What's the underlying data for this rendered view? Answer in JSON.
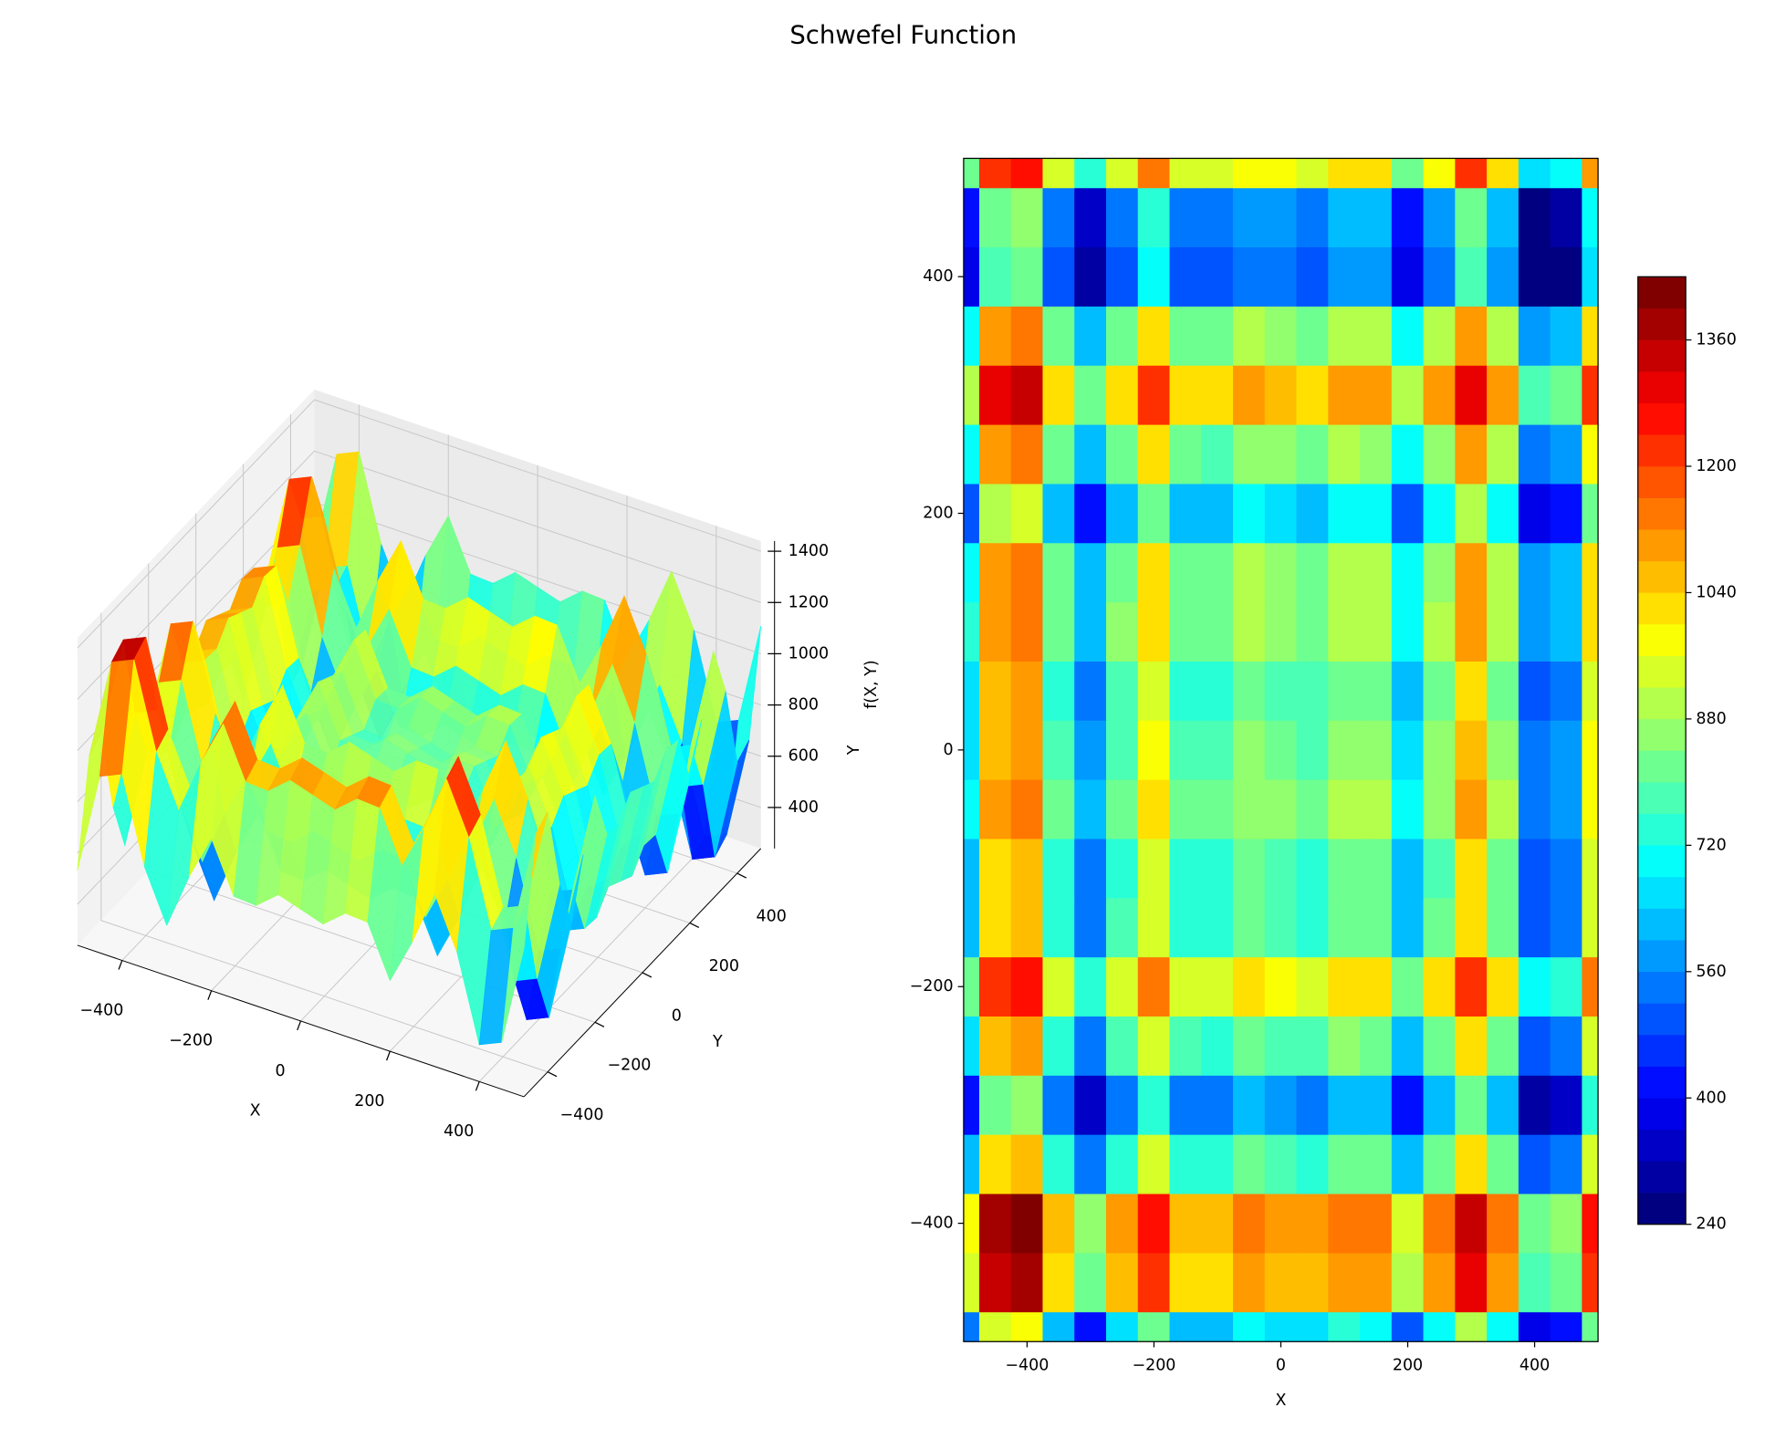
{
  "title": "Schwefel Function",
  "chart_data": [
    {
      "type": "surface",
      "x": [
        -500,
        -450,
        -400,
        -350,
        -300,
        -250,
        -200,
        -150,
        -100,
        -50,
        0,
        50,
        100,
        150,
        200,
        250,
        300,
        350,
        400,
        450,
        500
      ],
      "y": [
        -500,
        -450,
        -400,
        -350,
        -300,
        -250,
        -200,
        -150,
        -100,
        -50,
        0,
        50,
        100,
        150,
        200,
        250,
        300,
        350,
        400,
        450,
        500
      ],
      "z": [
        [
          532,
          929,
          968,
          636,
          436,
          655,
          836,
          638,
          632,
          704,
          676,
          648,
          720,
          714,
          516,
          697,
          916,
          716,
          384,
          423,
          820
        ],
        [
          929,
          1326,
          1365,
          1033,
          833,
          1052,
          1233,
          1035,
          1029,
          1101,
          1073,
          1045,
          1117,
          1111,
          913,
          1094,
          1313,
          1113,
          781,
          820,
          1217
        ],
        [
          968,
          1365,
          1404,
          1072,
          872,
          1091,
          1272,
          1074,
          1068,
          1140,
          1112,
          1084,
          1156,
          1150,
          952,
          1133,
          1352,
          1152,
          820,
          859,
          1256
        ],
        [
          636,
          1033,
          1072,
          740,
          540,
          759,
          940,
          742,
          736,
          808,
          780,
          752,
          824,
          818,
          620,
          801,
          1020,
          820,
          488,
          527,
          924
        ],
        [
          436,
          833,
          872,
          540,
          340,
          559,
          740,
          542,
          536,
          608,
          580,
          552,
          624,
          618,
          420,
          601,
          820,
          620,
          288,
          327,
          724
        ],
        [
          655,
          1052,
          1091,
          759,
          559,
          778,
          959,
          761,
          755,
          827,
          799,
          771,
          843,
          837,
          639,
          820,
          1039,
          839,
          507,
          546,
          943
        ],
        [
          836,
          1233,
          1272,
          940,
          740,
          959,
          1140,
          942,
          936,
          1008,
          980,
          952,
          1024,
          1018,
          820,
          1001,
          1220,
          1020,
          688,
          727,
          1124
        ],
        [
          638,
          1035,
          1074,
          742,
          542,
          761,
          942,
          744,
          738,
          810,
          782,
          754,
          826,
          820,
          622,
          803,
          1022,
          822,
          490,
          529,
          926
        ],
        [
          632,
          1029,
          1068,
          736,
          536,
          755,
          936,
          738,
          732,
          804,
          776,
          748,
          820,
          814,
          616,
          797,
          1016,
          816,
          484,
          523,
          920
        ],
        [
          704,
          1101,
          1140,
          808,
          608,
          827,
          1008,
          810,
          804,
          876,
          848,
          820,
          892,
          886,
          688,
          869,
          1088,
          888,
          556,
          595,
          992
        ],
        [
          676,
          1073,
          1112,
          780,
          580,
          799,
          980,
          782,
          776,
          848,
          820,
          792,
          864,
          858,
          660,
          841,
          1060,
          860,
          528,
          567,
          964
        ],
        [
          648,
          1045,
          1084,
          752,
          552,
          771,
          952,
          754,
          748,
          820,
          792,
          764,
          836,
          830,
          632,
          813,
          1032,
          832,
          500,
          539,
          936
        ],
        [
          720,
          1117,
          1156,
          824,
          624,
          843,
          1024,
          826,
          820,
          892,
          864,
          836,
          908,
          902,
          704,
          885,
          1104,
          904,
          572,
          611,
          1008
        ],
        [
          714,
          1111,
          1150,
          818,
          618,
          837,
          1018,
          820,
          814,
          886,
          858,
          830,
          902,
          896,
          698,
          879,
          1098,
          898,
          566,
          605,
          1002
        ],
        [
          516,
          913,
          952,
          620,
          420,
          639,
          820,
          622,
          616,
          688,
          660,
          632,
          704,
          698,
          500,
          681,
          900,
          700,
          368,
          407,
          804
        ],
        [
          697,
          1094,
          1133,
          801,
          601,
          820,
          1001,
          803,
          797,
          869,
          841,
          813,
          885,
          879,
          681,
          862,
          1081,
          881,
          549,
          588,
          985
        ],
        [
          916,
          1313,
          1352,
          1020,
          820,
          1039,
          1220,
          1022,
          1016,
          1088,
          1060,
          1032,
          1104,
          1098,
          900,
          1081,
          1300,
          1100,
          768,
          807,
          1204
        ],
        [
          716,
          1113,
          1152,
          820,
          620,
          839,
          1020,
          822,
          816,
          888,
          860,
          832,
          904,
          898,
          700,
          881,
          1100,
          900,
          568,
          607,
          1004
        ],
        [
          384,
          781,
          820,
          488,
          288,
          507,
          688,
          490,
          484,
          556,
          528,
          500,
          572,
          566,
          368,
          549,
          768,
          568,
          236,
          275,
          672
        ],
        [
          423,
          820,
          859,
          527,
          327,
          546,
          727,
          529,
          523,
          595,
          567,
          539,
          611,
          605,
          407,
          588,
          807,
          607,
          275,
          314,
          711
        ],
        [
          820,
          1217,
          1256,
          924,
          724,
          943,
          1124,
          926,
          920,
          992,
          964,
          936,
          1008,
          1002,
          804,
          985,
          1204,
          1004,
          672,
          711,
          1108
        ]
      ],
      "colormap": "jet",
      "xlim": [
        -500,
        500
      ],
      "ylim": [
        -500,
        500
      ],
      "zlim": [
        240,
        1440
      ],
      "xticks": [
        {
          "value": -400,
          "label": "−400"
        },
        {
          "value": -200,
          "label": "−200"
        },
        0,
        200,
        400
      ],
      "yticks": [
        {
          "value": -400,
          "label": "−400"
        },
        {
          "value": -200,
          "label": "−200"
        },
        0,
        200,
        400
      ],
      "zticks": [
        400,
        600,
        800,
        1000,
        1200,
        1400
      ],
      "xlabel": "X",
      "ylabel": "Y",
      "zlabel": "f(X, Y)"
    },
    {
      "type": "contour",
      "x": [
        -500,
        -450,
        -400,
        -350,
        -300,
        -250,
        -200,
        -150,
        -100,
        -50,
        0,
        50,
        100,
        150,
        200,
        250,
        300,
        350,
        400,
        450,
        500
      ],
      "y": [
        -500,
        -450,
        -400,
        -350,
        -300,
        -250,
        -200,
        -150,
        -100,
        -50,
        0,
        50,
        100,
        150,
        200,
        250,
        300,
        350,
        400,
        450,
        500
      ],
      "z": [
        [
          532,
          929,
          968,
          636,
          436,
          655,
          836,
          638,
          632,
          704,
          676,
          648,
          720,
          714,
          516,
          697,
          916,
          716,
          384,
          423,
          820
        ],
        [
          929,
          1326,
          1365,
          1033,
          833,
          1052,
          1233,
          1035,
          1029,
          1101,
          1073,
          1045,
          1117,
          1111,
          913,
          1094,
          1313,
          1113,
          781,
          820,
          1217
        ],
        [
          968,
          1365,
          1404,
          1072,
          872,
          1091,
          1272,
          1074,
          1068,
          1140,
          1112,
          1084,
          1156,
          1150,
          952,
          1133,
          1352,
          1152,
          820,
          859,
          1256
        ],
        [
          636,
          1033,
          1072,
          740,
          540,
          759,
          940,
          742,
          736,
          808,
          780,
          752,
          824,
          818,
          620,
          801,
          1020,
          820,
          488,
          527,
          924
        ],
        [
          436,
          833,
          872,
          540,
          340,
          559,
          740,
          542,
          536,
          608,
          580,
          552,
          624,
          618,
          420,
          601,
          820,
          620,
          288,
          327,
          724
        ],
        [
          655,
          1052,
          1091,
          759,
          559,
          778,
          959,
          761,
          755,
          827,
          799,
          771,
          843,
          837,
          639,
          820,
          1039,
          839,
          507,
          546,
          943
        ],
        [
          836,
          1233,
          1272,
          940,
          740,
          959,
          1140,
          942,
          936,
          1008,
          980,
          952,
          1024,
          1018,
          820,
          1001,
          1220,
          1020,
          688,
          727,
          1124
        ],
        [
          638,
          1035,
          1074,
          742,
          542,
          761,
          942,
          744,
          738,
          810,
          782,
          754,
          826,
          820,
          622,
          803,
          1022,
          822,
          490,
          529,
          926
        ],
        [
          632,
          1029,
          1068,
          736,
          536,
          755,
          936,
          738,
          732,
          804,
          776,
          748,
          820,
          814,
          616,
          797,
          1016,
          816,
          484,
          523,
          920
        ],
        [
          704,
          1101,
          1140,
          808,
          608,
          827,
          1008,
          810,
          804,
          876,
          848,
          820,
          892,
          886,
          688,
          869,
          1088,
          888,
          556,
          595,
          992
        ],
        [
          676,
          1073,
          1112,
          780,
          580,
          799,
          980,
          782,
          776,
          848,
          820,
          792,
          864,
          858,
          660,
          841,
          1060,
          860,
          528,
          567,
          964
        ],
        [
          648,
          1045,
          1084,
          752,
          552,
          771,
          952,
          754,
          748,
          820,
          792,
          764,
          836,
          830,
          632,
          813,
          1032,
          832,
          500,
          539,
          936
        ],
        [
          720,
          1117,
          1156,
          824,
          624,
          843,
          1024,
          826,
          820,
          892,
          864,
          836,
          908,
          902,
          704,
          885,
          1104,
          904,
          572,
          611,
          1008
        ],
        [
          714,
          1111,
          1150,
          818,
          618,
          837,
          1018,
          820,
          814,
          886,
          858,
          830,
          902,
          896,
          698,
          879,
          1098,
          898,
          566,
          605,
          1002
        ],
        [
          516,
          913,
          952,
          620,
          420,
          639,
          820,
          622,
          616,
          688,
          660,
          632,
          704,
          698,
          500,
          681,
          900,
          700,
          368,
          407,
          804
        ],
        [
          697,
          1094,
          1133,
          801,
          601,
          820,
          1001,
          803,
          797,
          869,
          841,
          813,
          885,
          879,
          681,
          862,
          1081,
          881,
          549,
          588,
          985
        ],
        [
          916,
          1313,
          1352,
          1020,
          820,
          1039,
          1220,
          1022,
          1016,
          1088,
          1060,
          1032,
          1104,
          1098,
          900,
          1081,
          1300,
          1100,
          768,
          807,
          1204
        ],
        [
          716,
          1113,
          1152,
          820,
          620,
          839,
          1020,
          822,
          816,
          888,
          860,
          832,
          904,
          898,
          700,
          881,
          1100,
          900,
          568,
          607,
          1004
        ],
        [
          384,
          781,
          820,
          488,
          288,
          507,
          688,
          490,
          484,
          556,
          528,
          500,
          572,
          566,
          368,
          549,
          768,
          568,
          236,
          275,
          672
        ],
        [
          423,
          820,
          859,
          527,
          327,
          546,
          727,
          529,
          523,
          595,
          567,
          539,
          611,
          605,
          407,
          588,
          807,
          607,
          275,
          314,
          711
        ],
        [
          820,
          1217,
          1256,
          924,
          724,
          943,
          1124,
          926,
          920,
          992,
          964,
          936,
          1008,
          1002,
          804,
          985,
          1204,
          1004,
          672,
          711,
          1108
        ]
      ],
      "colormap": "jet",
      "levels": [
        240,
        280,
        320,
        360,
        400,
        440,
        480,
        520,
        560,
        600,
        640,
        680,
        720,
        760,
        800,
        840,
        880,
        920,
        960,
        1000,
        1040,
        1080,
        1120,
        1160,
        1200,
        1240,
        1280,
        1320,
        1360,
        1400,
        1440
      ],
      "colorbar_ticks": [
        240,
        400,
        560,
        720,
        880,
        1040,
        1200,
        1360
      ],
      "xlim": [
        -500,
        500
      ],
      "ylim": [
        -500,
        500
      ],
      "xticks": [
        {
          "value": -400,
          "label": "−400"
        },
        {
          "value": -200,
          "label": "−200"
        },
        0,
        200,
        400
      ],
      "yticks": [
        {
          "value": -400,
          "label": "−400"
        },
        {
          "value": -200,
          "label": "−200"
        },
        0,
        200,
        400
      ],
      "xlabel": "X",
      "ylabel": "Y"
    }
  ]
}
